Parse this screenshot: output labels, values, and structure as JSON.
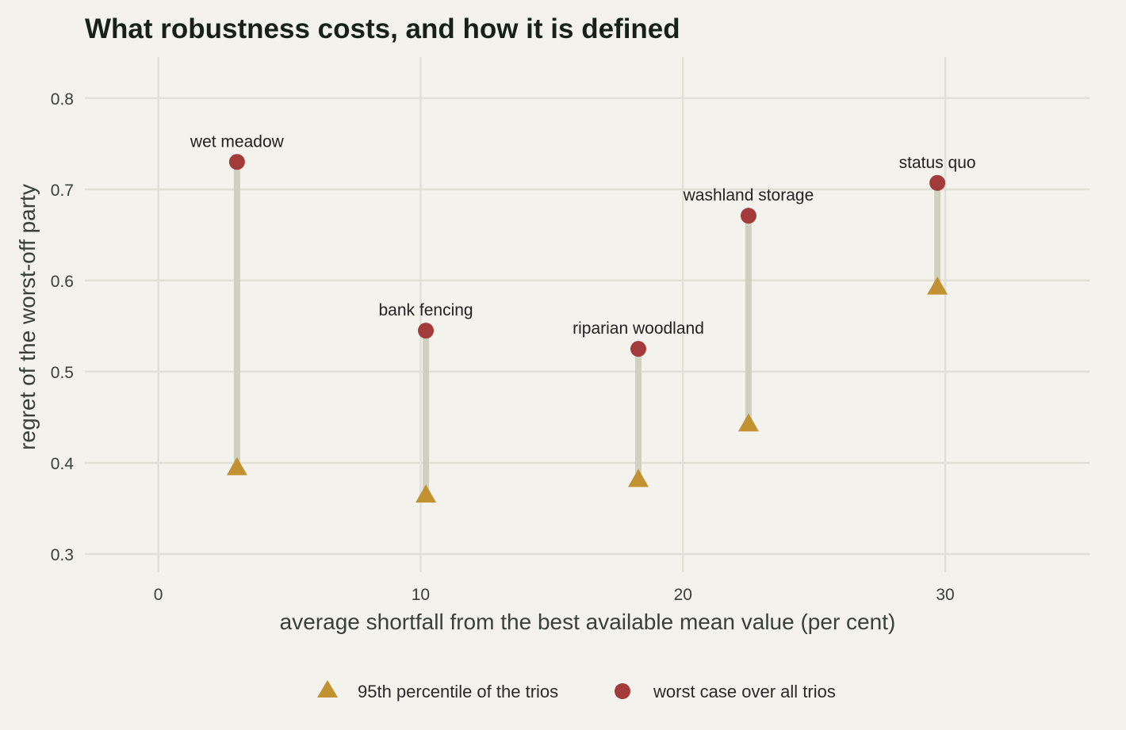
{
  "chart_data": {
    "type": "scatter",
    "title": "What robustness costs, and how it is defined",
    "xlabel": "average shortfall from the best available mean value (per cent)",
    "ylabel": "regret of the worst-off party",
    "xlim": [
      -2.8,
      35.5
    ],
    "ylim": [
      0.28,
      0.845
    ],
    "xticks": [
      0,
      10,
      20,
      30
    ],
    "yticks": [
      0.3,
      0.4,
      0.5,
      0.6,
      0.7,
      0.8
    ],
    "grid": true,
    "legend_position": "bottom",
    "series": [
      {
        "name": "95th percentile of the trios",
        "marker": "triangle",
        "color": "#c29232"
      },
      {
        "name": "worst case over all trios",
        "marker": "circle",
        "color": "#a33b3b"
      }
    ],
    "segment_color": "#cfd0bd",
    "points": [
      {
        "label": "wet meadow",
        "x": 3.0,
        "p95": 0.395,
        "worst": 0.73
      },
      {
        "label": "bank fencing",
        "x": 10.2,
        "p95": 0.365,
        "worst": 0.545
      },
      {
        "label": "riparian woodland",
        "x": 18.3,
        "p95": 0.382,
        "worst": 0.525
      },
      {
        "label": "washland storage",
        "x": 22.5,
        "p95": 0.443,
        "worst": 0.671
      },
      {
        "label": "status quo",
        "x": 29.7,
        "p95": 0.593,
        "worst": 0.707
      }
    ]
  }
}
